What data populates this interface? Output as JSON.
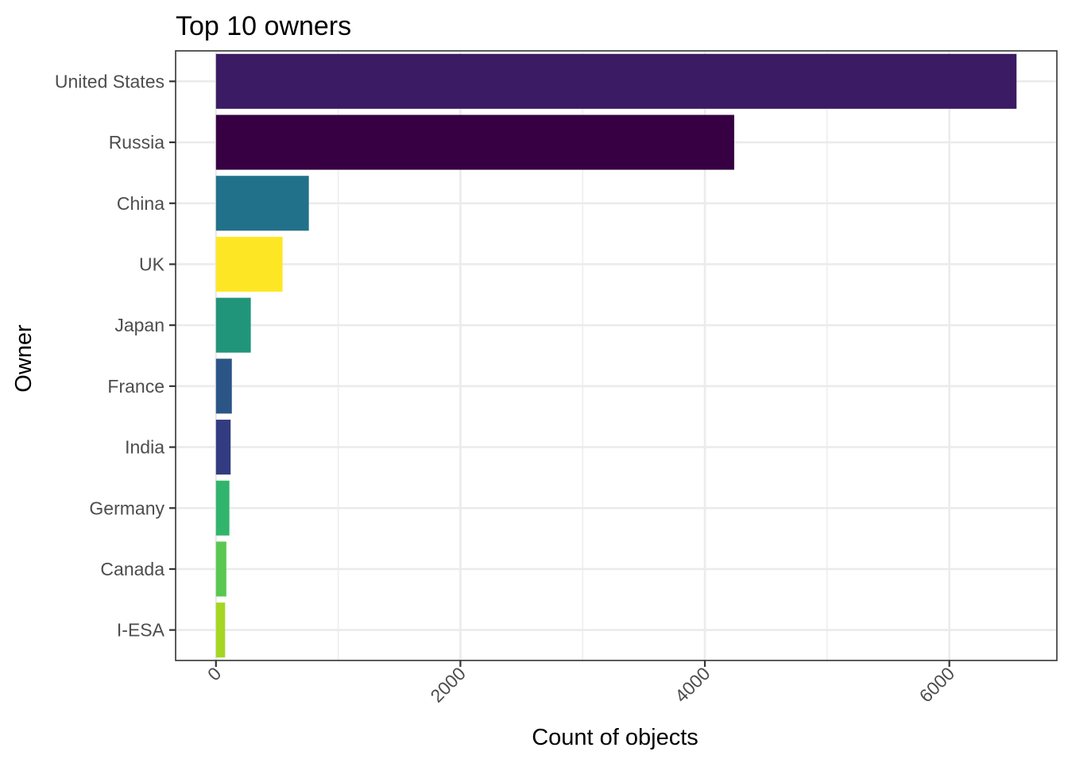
{
  "chart_data": {
    "type": "bar",
    "orientation": "horizontal",
    "title": "Top 10 owners",
    "xlabel": "Count of objects",
    "ylabel": "Owner",
    "categories": [
      "United States",
      "Russia",
      "China",
      "UK",
      "Japan",
      "France",
      "India",
      "Germany",
      "Canada",
      "I-ESA"
    ],
    "values": [
      6550,
      4240,
      760,
      545,
      285,
      130,
      120,
      110,
      85,
      75
    ],
    "colors": [
      "#3b1b63",
      "#360042",
      "#21718a",
      "#fde725",
      "#21957a",
      "#2c5587",
      "#333c80",
      "#31b56c",
      "#5ac751",
      "#a4d623"
    ],
    "x_ticks": [
      0,
      2000,
      4000,
      6000
    ],
    "xlim": [
      -330,
      6880
    ],
    "grid": true,
    "legend": "none"
  }
}
